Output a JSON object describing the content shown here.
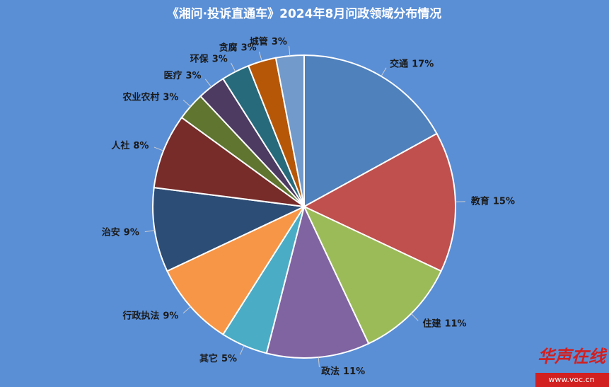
{
  "chart_data": {
    "type": "pie",
    "title": "《湘问·投诉直通车》2024年8月问政领域分布情况",
    "categories": [
      "交通",
      "教育",
      "住建",
      "政法",
      "其它",
      "行政执法",
      "治安",
      "人社",
      "农业农村",
      "医疗",
      "环保",
      "贪腐",
      "城管"
    ],
    "values": [
      17,
      15,
      11,
      11,
      5,
      9,
      9,
      8,
      3,
      3,
      3,
      3,
      3
    ],
    "value_labels": [
      "17%",
      "15%",
      "11%",
      "11%",
      "5%",
      "9%",
      "9%",
      "8%",
      "3%",
      "3%",
      "3%",
      "3%",
      "3%"
    ],
    "colors": [
      "#4f81bd",
      "#c0504d",
      "#9bbb59",
      "#8064a2",
      "#4bacc6",
      "#f79646",
      "#2c4d75",
      "#772c2a",
      "#5f7530",
      "#4d3b62",
      "#276a7c",
      "#b65708",
      "#729aca"
    ],
    "watermark": {
      "logo": "华声在线",
      "url": "www.voc.cn"
    }
  }
}
